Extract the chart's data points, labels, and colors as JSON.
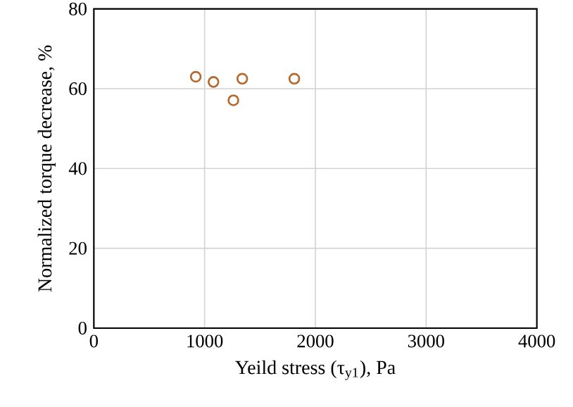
{
  "chart_data": {
    "type": "scatter",
    "xlabel": "Yeild stress (τ$_{y1}$),  Pa",
    "ylabel": "Normalized torque decrease, %",
    "x": [
      920,
      1080,
      1260,
      1340,
      1810
    ],
    "values": [
      63,
      61.7,
      57.1,
      62.5,
      62.5
    ],
    "color": "#b5692e",
    "marker": "circle",
    "grid": true,
    "xlim": [
      0,
      4000
    ],
    "xticks": [
      0,
      1000,
      2000,
      3000,
      4000
    ],
    "ylim": [
      0,
      80
    ],
    "yticks": [
      0,
      20,
      40,
      60,
      80
    ]
  }
}
